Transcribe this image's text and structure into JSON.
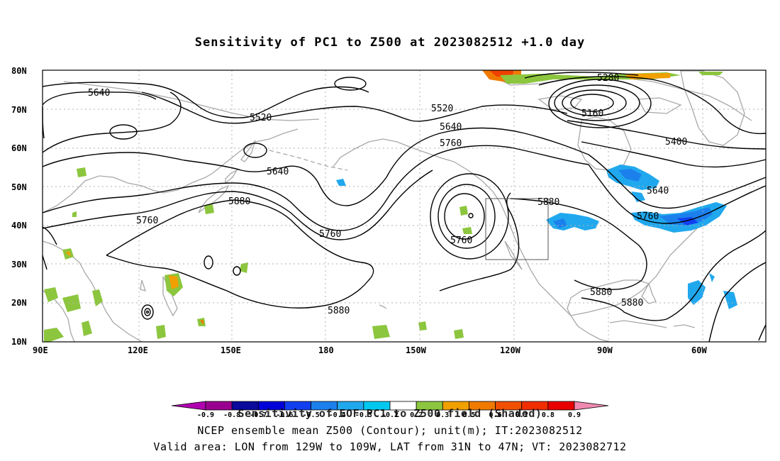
{
  "title": "Sensitivity of PC1 to Z500 at 2023082512 +1.0 day",
  "map": {
    "lat_labels": [
      "80N",
      "70N",
      "60N",
      "50N",
      "40N",
      "30N",
      "20N",
      "10N"
    ],
    "lon_labels": [
      "90E",
      "120E",
      "150E",
      "180",
      "150W",
      "120W",
      "90W",
      "60W"
    ],
    "contour_labels": [
      "5640",
      "5520",
      "5640",
      "5760",
      "5880",
      "5520",
      "5640",
      "5760",
      "5760",
      "5880",
      "5760",
      "5880",
      "5280",
      "5160",
      "5400",
      "5640",
      "5760",
      "5880",
      "5880"
    ],
    "valid_box": {
      "lon_from": "129W",
      "lon_to": "109W",
      "lat_from": "31N",
      "lat_to": "47N"
    }
  },
  "colorbar": {
    "ticks": [
      "-0.9",
      "-0.8",
      "-0.7",
      "-0.6",
      "-0.5",
      "-0.4",
      "-0.3",
      "-0.2",
      "0.2",
      "0.3",
      "0.5",
      "0.6",
      "0.7",
      "0.8",
      "0.9"
    ],
    "colors": [
      "#9a0090",
      "#0a0a9c",
      "#0000d8",
      "#1040f0",
      "#1b80ec",
      "#20a8ee",
      "#00c8f0",
      "#ffffff",
      "#8cc63e",
      "#f0a000",
      "#f07a00",
      "#f05000",
      "#f02e00",
      "#e80000"
    ],
    "end_low": "#b000b0",
    "end_high": "#f08ab0"
  },
  "captions": {
    "line1": "Sensitivity of EOF PC1 to Z500 field (Shaded)",
    "line2": "NCEP ensemble mean Z500 (Contour); unit(m); IT:2023082512",
    "line3": "Valid area: LON from 129W to 109W, LAT from 31N to 47N; VT: 2023082712"
  }
}
